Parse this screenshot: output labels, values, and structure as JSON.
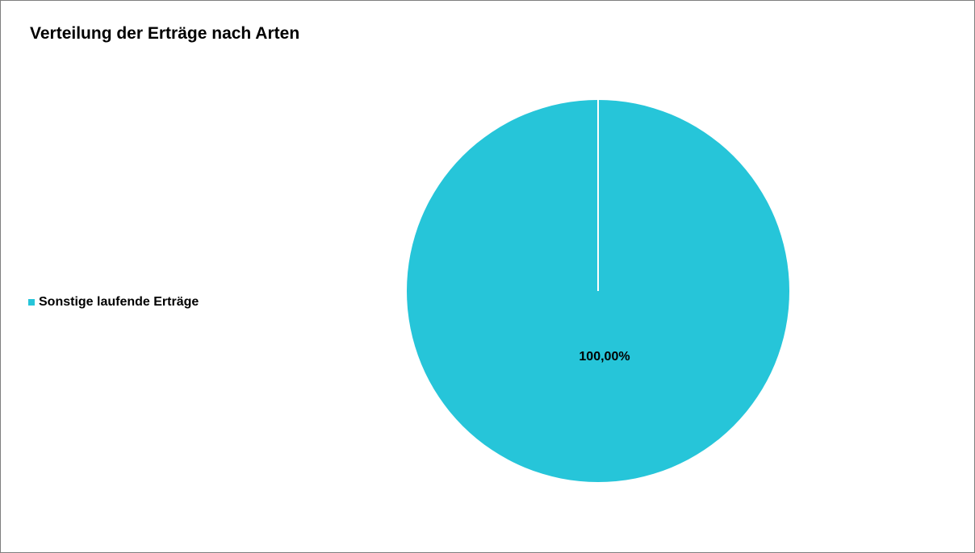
{
  "chart_data": {
    "type": "pie",
    "title": "Verteilung der Erträge nach Arten",
    "categories": [
      "Sonstige laufende Erträge"
    ],
    "values": [
      100
    ],
    "data_labels": [
      "100,00%"
    ],
    "colors": [
      "#26c5d9"
    ],
    "legend_position": "left",
    "separator_color": "#ffffff"
  }
}
